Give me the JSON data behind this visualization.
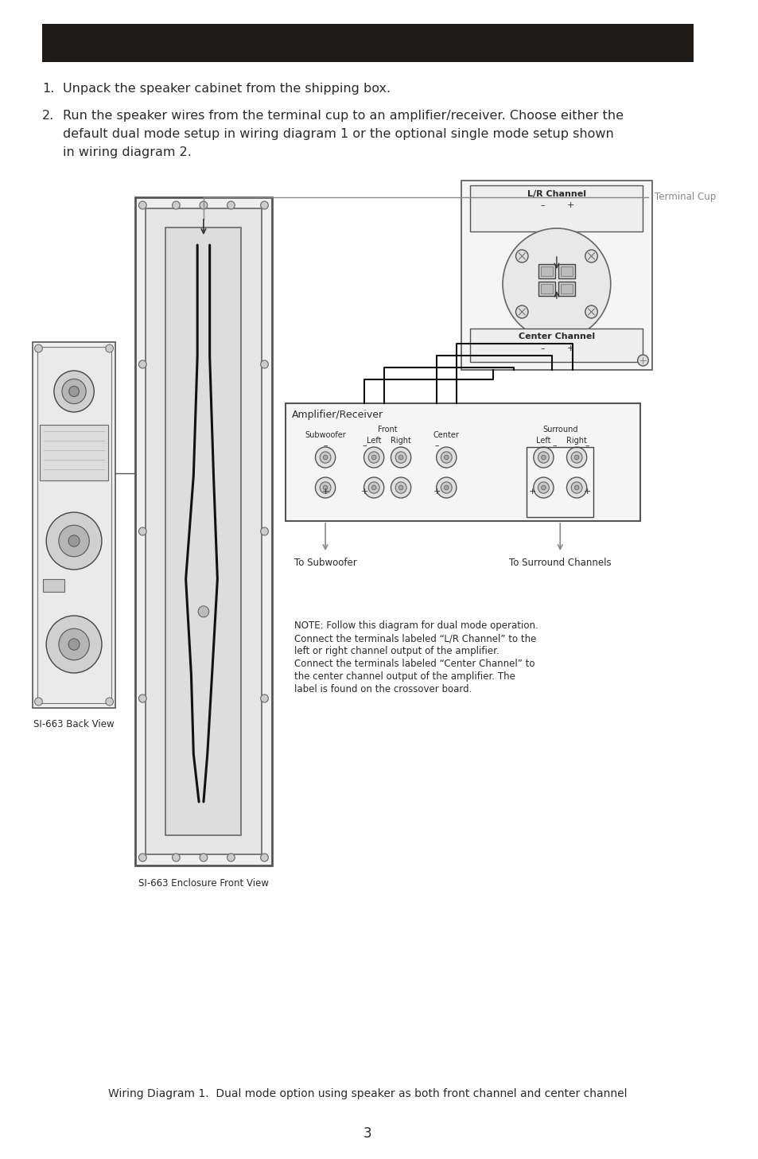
{
  "header_color": "#1e1a18",
  "bg_color": "#ffffff",
  "text_color": "#2a2a2a",
  "gray_line": "#888888",
  "dark_line": "#333333",
  "title_text": "Wiring Diagram 1.  Dual mode option using speaker as both front channel and center channel",
  "page_number": "3",
  "step1": "Unpack the speaker cabinet from the shipping box.",
  "step2_line1": "Run the speaker wires from the terminal cup to an amplifier/receiver. Choose either the",
  "step2_line2": "default dual mode setup in wiring diagram 1 or the optional single mode setup shown",
  "step2_line3": "in wiring diagram 2.",
  "label_back_view": "SI-663 Back View",
  "label_front_view": "SI-663 Enclosure Front View",
  "label_terminal_cup": "Terminal Cup",
  "label_amplifier": "Amplifier/Receiver",
  "label_lr_channel": "L/R Channel",
  "label_center_channel": "Center Channel",
  "label_subwoofer": "Subwoofer",
  "label_front": "Front",
  "label_front_left": "Left",
  "label_right": "Right",
  "label_center": "Center",
  "label_surround": "Surround",
  "label_surround_left": "Left",
  "label_surround_right": "Right",
  "label_to_subwoofer": "To Subwoofer",
  "label_to_surround": "To Surround Channels",
  "note_text_line1": "NOTE: Follow this diagram for dual mode operation.",
  "note_text_line2": "Connect the terminals labeled “L/R Channel” to the",
  "note_text_line3": "left or right channel output of the amplifier.",
  "note_text_line4": "Connect the terminals labeled “Center Channel” to",
  "note_text_line5": "the center channel output of the amplifier. The",
  "note_text_line6": "label is found on the crossover board."
}
